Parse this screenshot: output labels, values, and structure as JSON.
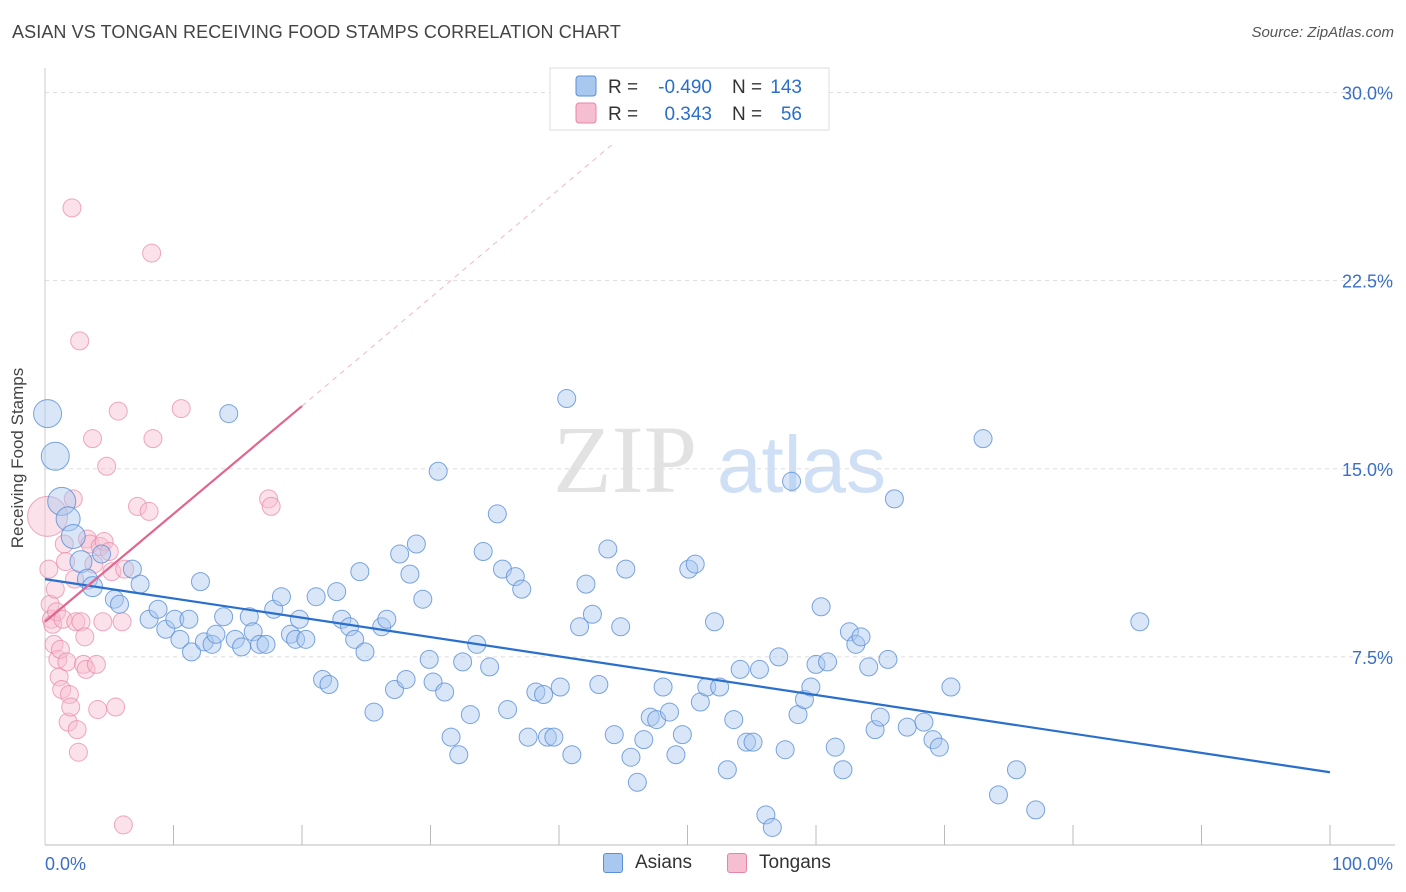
{
  "title": "ASIAN VS TONGAN RECEIVING FOOD STAMPS CORRELATION CHART",
  "source": "Source: ZipAtlas.com",
  "watermark": {
    "zip": "ZIP",
    "atlas": "atlas"
  },
  "colors": {
    "asian": "#5b8fd6",
    "asian_fill": "#a9c8ef",
    "asian_line": "#2a6fcc",
    "tongan": "#e884a6",
    "tongan_fill": "#f6bfd1",
    "tongan_line": "#e06690",
    "axis_text": "#3b6fc6",
    "grid": "#dddddd"
  },
  "legend": {
    "rows": [
      {
        "r_label": "R =",
        "r_value": "-0.490",
        "n_label": "N =",
        "n_value": "143"
      },
      {
        "r_label": "R =",
        "r_value": "0.343",
        "n_label": "N =",
        "n_value": "56"
      }
    ]
  },
  "bottom_legend": {
    "asians": "Asians",
    "tongans": "Tongans"
  },
  "chart_data": {
    "type": "scatter",
    "title": "ASIAN VS TONGAN RECEIVING FOOD STAMPS CORRELATION CHART",
    "xlabel": "",
    "ylabel": "Receiving Food Stamps",
    "xlim": [
      0,
      100
    ],
    "ylim": [
      0,
      30.5
    ],
    "x_tick_labels": [
      "0.0%",
      "100.0%"
    ],
    "y_ticks": [
      7.5,
      15.0,
      22.5,
      30.0
    ],
    "y_tick_labels": [
      "7.5%",
      "15.0%",
      "22.5%",
      "30.0%"
    ],
    "grid": "horizontal-dashed",
    "series": [
      {
        "name": "Asians",
        "r": -0.49,
        "n": 143,
        "trend": {
          "x": [
            0,
            100
          ],
          "y": [
            10.6,
            2.9
          ]
        },
        "points": [
          [
            0.2,
            17.2,
            14
          ],
          [
            0.8,
            15.5,
            14
          ],
          [
            1.3,
            13.7,
            14
          ],
          [
            1.8,
            13.0,
            12
          ],
          [
            2.2,
            12.3,
            12
          ],
          [
            2.8,
            11.3,
            11
          ],
          [
            3.3,
            10.6,
            10
          ],
          [
            3.7,
            10.3,
            10
          ],
          [
            4.4,
            11.6,
            9
          ],
          [
            5.4,
            9.8,
            9
          ],
          [
            5.8,
            9.6,
            9
          ],
          [
            6.8,
            11.0,
            9
          ],
          [
            7.4,
            10.4,
            9
          ],
          [
            8.1,
            9.0,
            9
          ],
          [
            8.8,
            9.4,
            9
          ],
          [
            9.4,
            8.6,
            9
          ],
          [
            10.1,
            9.0,
            9
          ],
          [
            10.5,
            8.2,
            9
          ],
          [
            11.2,
            9.0,
            9
          ],
          [
            11.4,
            7.7,
            9
          ],
          [
            12.1,
            10.5,
            9
          ],
          [
            12.4,
            8.1,
            9
          ],
          [
            13.0,
            8.0,
            9
          ],
          [
            13.3,
            8.4,
            9
          ],
          [
            13.9,
            9.1,
            9
          ],
          [
            14.3,
            17.2,
            9
          ],
          [
            14.8,
            8.2,
            9
          ],
          [
            15.3,
            7.9,
            9
          ],
          [
            15.9,
            9.1,
            9
          ],
          [
            16.2,
            8.5,
            9
          ],
          [
            16.7,
            8.0,
            9
          ],
          [
            17.2,
            8.0,
            9
          ],
          [
            17.8,
            9.4,
            9
          ],
          [
            18.4,
            9.9,
            9
          ],
          [
            19.1,
            8.4,
            9
          ],
          [
            19.5,
            8.2,
            9
          ],
          [
            19.8,
            9.0,
            9
          ],
          [
            20.3,
            8.2,
            9
          ],
          [
            21.1,
            9.9,
            9
          ],
          [
            21.6,
            6.6,
            9
          ],
          [
            22.1,
            6.4,
            9
          ],
          [
            22.7,
            10.1,
            9
          ],
          [
            23.1,
            9.0,
            9
          ],
          [
            23.7,
            8.7,
            9
          ],
          [
            24.1,
            8.2,
            9
          ],
          [
            24.5,
            10.9,
            9
          ],
          [
            24.9,
            7.7,
            9
          ],
          [
            25.6,
            5.3,
            9
          ],
          [
            26.2,
            8.7,
            9
          ],
          [
            26.6,
            9.0,
            9
          ],
          [
            27.2,
            6.2,
            9
          ],
          [
            27.6,
            11.6,
            9
          ],
          [
            28.1,
            6.6,
            9
          ],
          [
            28.4,
            10.8,
            9
          ],
          [
            28.9,
            12.0,
            9
          ],
          [
            29.4,
            9.8,
            9
          ],
          [
            29.9,
            7.4,
            9
          ],
          [
            30.2,
            6.5,
            9
          ],
          [
            30.6,
            14.9,
            9
          ],
          [
            31.1,
            6.1,
            9
          ],
          [
            31.6,
            4.3,
            9
          ],
          [
            32.2,
            3.6,
            9
          ],
          [
            32.5,
            7.3,
            9
          ],
          [
            33.1,
            5.2,
            9
          ],
          [
            33.6,
            8.0,
            9
          ],
          [
            34.1,
            11.7,
            9
          ],
          [
            34.6,
            7.1,
            9
          ],
          [
            35.2,
            13.2,
            9
          ],
          [
            35.6,
            11.0,
            9
          ],
          [
            36.0,
            5.4,
            9
          ],
          [
            36.6,
            10.7,
            9
          ],
          [
            37.1,
            10.2,
            9
          ],
          [
            37.6,
            4.3,
            9
          ],
          [
            38.2,
            6.1,
            9
          ],
          [
            38.8,
            6.0,
            9
          ],
          [
            39.1,
            4.3,
            9
          ],
          [
            39.6,
            4.3,
            9
          ],
          [
            40.1,
            6.3,
            9
          ],
          [
            40.6,
            17.8,
            9
          ],
          [
            41.0,
            3.6,
            9
          ],
          [
            41.6,
            8.7,
            9
          ],
          [
            42.1,
            10.4,
            9
          ],
          [
            42.6,
            9.2,
            9
          ],
          [
            43.1,
            6.4,
            9
          ],
          [
            43.8,
            11.8,
            9
          ],
          [
            44.3,
            4.4,
            9
          ],
          [
            44.8,
            8.7,
            9
          ],
          [
            45.2,
            11.0,
            9
          ],
          [
            45.6,
            3.5,
            9
          ],
          [
            46.1,
            2.5,
            9
          ],
          [
            46.6,
            4.2,
            9
          ],
          [
            47.1,
            5.1,
            9
          ],
          [
            47.6,
            5.0,
            9
          ],
          [
            48.1,
            6.3,
            9
          ],
          [
            48.6,
            5.3,
            9
          ],
          [
            49.1,
            3.6,
            9
          ],
          [
            49.6,
            4.4,
            9
          ],
          [
            50.1,
            11.0,
            9
          ],
          [
            50.6,
            11.2,
            9
          ],
          [
            51.0,
            5.7,
            9
          ],
          [
            51.5,
            6.3,
            9
          ],
          [
            52.1,
            8.9,
            9
          ],
          [
            52.5,
            6.3,
            9
          ],
          [
            53.1,
            3.0,
            9
          ],
          [
            53.6,
            5.0,
            9
          ],
          [
            54.1,
            7.0,
            9
          ],
          [
            54.6,
            4.1,
            9
          ],
          [
            55.1,
            4.1,
            9
          ],
          [
            55.6,
            7.0,
            9
          ],
          [
            56.1,
            1.2,
            9
          ],
          [
            56.6,
            0.7,
            9
          ],
          [
            57.1,
            7.5,
            9
          ],
          [
            57.6,
            3.8,
            9
          ],
          [
            58.1,
            14.5,
            9
          ],
          [
            58.6,
            5.2,
            9
          ],
          [
            59.1,
            5.8,
            9
          ],
          [
            59.6,
            6.3,
            9
          ],
          [
            60.0,
            7.2,
            9
          ],
          [
            60.4,
            9.5,
            9
          ],
          [
            60.9,
            7.3,
            9
          ],
          [
            61.5,
            3.9,
            9
          ],
          [
            62.1,
            3.0,
            9
          ],
          [
            62.6,
            8.5,
            9
          ],
          [
            63.1,
            8.0,
            9
          ],
          [
            63.5,
            8.3,
            9
          ],
          [
            64.1,
            7.1,
            9
          ],
          [
            64.6,
            4.6,
            9
          ],
          [
            65.0,
            5.1,
            9
          ],
          [
            65.6,
            7.4,
            9
          ],
          [
            66.1,
            13.8,
            9
          ],
          [
            67.1,
            4.7,
            9
          ],
          [
            68.4,
            4.9,
            9
          ],
          [
            69.1,
            4.2,
            9
          ],
          [
            69.6,
            3.9,
            9
          ],
          [
            70.5,
            6.3,
            9
          ],
          [
            73.0,
            16.2,
            9
          ],
          [
            74.2,
            2.0,
            9
          ],
          [
            75.6,
            3.0,
            9
          ],
          [
            77.1,
            1.4,
            9
          ],
          [
            85.2,
            8.9,
            9
          ]
        ]
      },
      {
        "name": "Tongans",
        "r": 0.343,
        "n": 56,
        "trend": {
          "x": [
            0,
            20
          ],
          "y": [
            8.9,
            17.5
          ],
          "dashed_extension": {
            "x": [
              20,
              44.3
            ],
            "y": [
              17.5,
              28.0
            ]
          }
        },
        "points": [
          [
            0.2,
            13.1,
            20
          ],
          [
            0.3,
            11.0,
            9
          ],
          [
            0.4,
            9.6,
            9
          ],
          [
            0.5,
            9.0,
            9
          ],
          [
            0.6,
            8.8,
            9
          ],
          [
            0.7,
            8.0,
            9
          ],
          [
            0.8,
            10.2,
            9
          ],
          [
            0.9,
            9.3,
            9
          ],
          [
            1.0,
            7.4,
            9
          ],
          [
            1.1,
            6.7,
            9
          ],
          [
            1.2,
            7.8,
            9
          ],
          [
            1.3,
            6.2,
            9
          ],
          [
            1.4,
            9.0,
            9
          ],
          [
            1.5,
            12.0,
            9
          ],
          [
            1.6,
            11.3,
            9
          ],
          [
            1.7,
            7.3,
            9
          ],
          [
            1.8,
            4.9,
            9
          ],
          [
            1.9,
            6.0,
            9
          ],
          [
            2.0,
            5.5,
            9
          ],
          [
            2.1,
            25.4,
            9
          ],
          [
            2.2,
            13.8,
            9
          ],
          [
            2.3,
            10.6,
            9
          ],
          [
            2.4,
            8.9,
            9
          ],
          [
            2.5,
            4.6,
            9
          ],
          [
            2.6,
            3.7,
            9
          ],
          [
            2.7,
            20.1,
            9
          ],
          [
            2.8,
            8.9,
            9
          ],
          [
            3.0,
            7.2,
            9
          ],
          [
            3.1,
            8.3,
            9
          ],
          [
            3.2,
            7.0,
            9
          ],
          [
            3.3,
            12.2,
            9
          ],
          [
            3.5,
            12.0,
            9
          ],
          [
            3.7,
            16.2,
            9
          ],
          [
            3.8,
            11.2,
            9
          ],
          [
            4.0,
            7.2,
            9
          ],
          [
            4.1,
            5.4,
            9
          ],
          [
            4.3,
            11.9,
            9
          ],
          [
            4.5,
            8.9,
            9
          ],
          [
            4.6,
            12.1,
            9
          ],
          [
            4.8,
            15.1,
            9
          ],
          [
            5.0,
            11.7,
            9
          ],
          [
            5.2,
            10.9,
            9
          ],
          [
            5.5,
            5.5,
            9
          ],
          [
            5.7,
            17.3,
            9
          ],
          [
            6.0,
            8.9,
            9
          ],
          [
            6.2,
            11.0,
            9
          ],
          [
            6.1,
            0.8,
            9
          ],
          [
            7.2,
            13.5,
            9
          ],
          [
            8.1,
            13.3,
            9
          ],
          [
            8.3,
            23.6,
            9
          ],
          [
            8.4,
            16.2,
            9
          ],
          [
            10.6,
            17.4,
            9
          ],
          [
            17.4,
            13.8,
            9
          ],
          [
            17.6,
            13.5,
            9
          ]
        ]
      }
    ]
  }
}
